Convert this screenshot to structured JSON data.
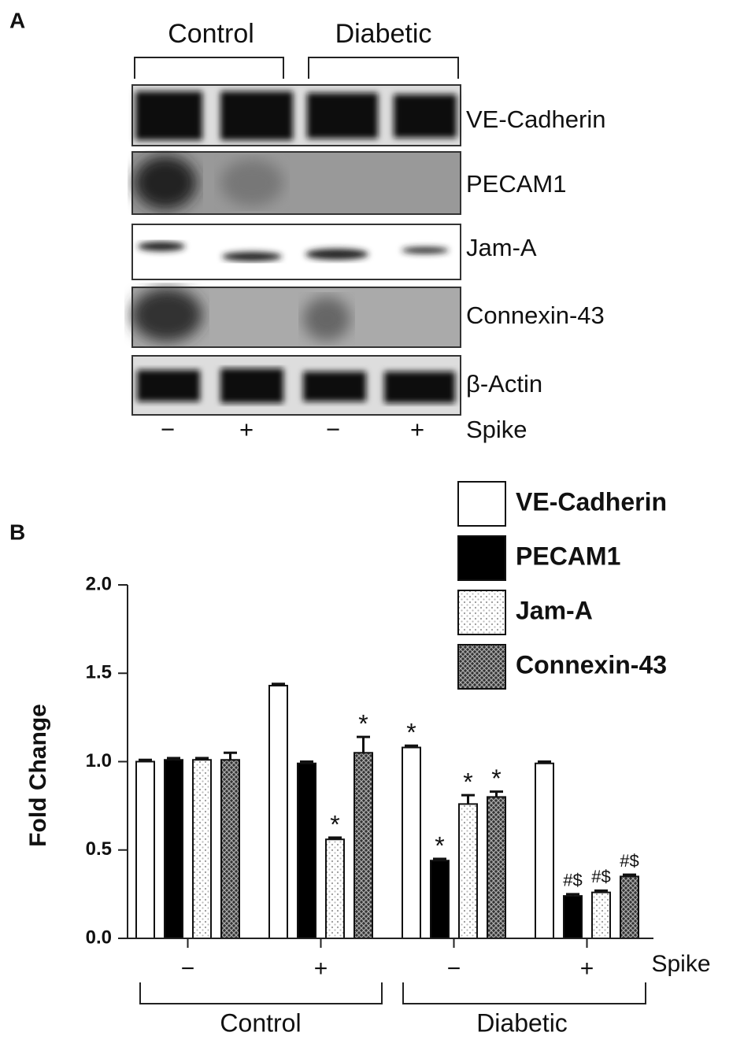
{
  "panel_a": {
    "label": "A",
    "groups": [
      "Control",
      "Diabetic"
    ],
    "proteins": [
      "VE-Cadherin",
      "PECAM1",
      "Jam-A",
      "Connexin-43",
      "β-Actin"
    ],
    "lanes": [
      "−",
      "+",
      "−",
      "+"
    ],
    "treatment": "Spike"
  },
  "panel_b": {
    "label": "B"
  },
  "chart_data": {
    "type": "bar",
    "ylabel": "Fold Change",
    "categories": [
      "−",
      "+",
      "−",
      "+"
    ],
    "category_axis_label": "Spike",
    "group_labels": [
      "Control",
      "Diabetic"
    ],
    "ylim": [
      0,
      2
    ],
    "yticks": [
      {
        "value": 0,
        "label": "0.0"
      },
      {
        "value": 0.5,
        "label": "0.5"
      },
      {
        "value": 1,
        "label": "1.0"
      },
      {
        "value": 1.5,
        "label": "1.5"
      },
      {
        "value": 2,
        "label": "2.0"
      }
    ],
    "series": [
      {
        "name": "VE-Cadherin",
        "color": "#ffffff",
        "pattern": "none",
        "values": [
          1.0,
          1.43,
          1.08,
          0.99
        ],
        "errors": [
          0.01,
          0.01,
          0.01,
          0.01
        ],
        "annotations": [
          null,
          null,
          "*",
          null
        ]
      },
      {
        "name": "PECAM1",
        "color": "#000000",
        "pattern": "none",
        "values": [
          1.01,
          0.99,
          0.44,
          0.24
        ],
        "errors": [
          0.01,
          0.01,
          0.01,
          0.01
        ],
        "annotations": [
          null,
          null,
          "*",
          "#$"
        ]
      },
      {
        "name": "Jam-A",
        "color": "#ffffff",
        "pattern": "dots",
        "values": [
          1.01,
          0.56,
          0.76,
          0.26
        ],
        "errors": [
          0.01,
          0.01,
          0.05,
          0.01
        ],
        "annotations": [
          null,
          "*",
          "*",
          "#$"
        ]
      },
      {
        "name": "Connexin-43",
        "color": "#444444",
        "pattern": "crosshatch",
        "values": [
          1.01,
          1.05,
          0.8,
          0.35
        ],
        "errors": [
          0.04,
          0.09,
          0.03,
          0.01
        ],
        "annotations": [
          null,
          "*",
          "*",
          "#$"
        ]
      }
    ]
  }
}
